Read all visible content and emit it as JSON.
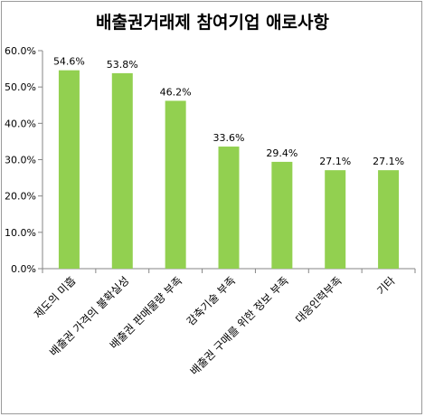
{
  "chart_data": {
    "type": "bar",
    "title": "배출권거래제 참여기업 애로사항",
    "categories": [
      "제도의 미흡",
      "배출권 가격의 불확실성",
      "배출권 판매물량 부족",
      "감축기술 부족",
      "배출권 구매를 위한 정보 부족",
      "대응인력부족",
      "기타"
    ],
    "values": [
      54.6,
      53.8,
      46.2,
      33.6,
      29.4,
      27.1,
      27.1
    ],
    "data_labels": [
      "54.6%",
      "53.8%",
      "46.2%",
      "33.6%",
      "29.4%",
      "27.1%",
      "27.1%"
    ],
    "y_ticks": [
      "0.0%",
      "10.0%",
      "20.0%",
      "30.0%",
      "40.0%",
      "50.0%",
      "60.0%"
    ],
    "ylim": [
      0,
      60
    ],
    "xlabel": "",
    "ylabel": "",
    "grid": false,
    "legend": "none",
    "bar_color": "#92d050",
    "axis_color": "#868686"
  }
}
